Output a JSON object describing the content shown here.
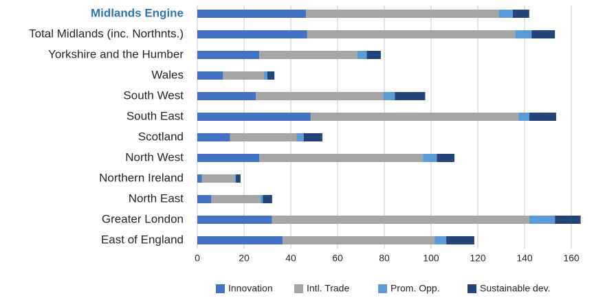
{
  "chart_data": {
    "type": "stacked_bar_horizontal",
    "categories": [
      "Midlands Engine",
      "Total Midlands (inc. Northnts.)",
      "Yorkshire and the Humber",
      "Wales",
      "South West",
      "South East",
      "Scotland",
      "North West",
      "Northern Ireland",
      "North East",
      "Greater London",
      "East of England"
    ],
    "series": [
      {
        "name": "Innovation",
        "color": "#4472c4",
        "values": [
          46.5,
          47,
          26.5,
          11,
          25,
          48.5,
          14,
          26.5,
          2,
          6,
          32,
          36.5
        ]
      },
      {
        "name": "Intl. Trade",
        "color": "#a5a5a5",
        "values": [
          82.5,
          89,
          42,
          17.5,
          54.5,
          89,
          28.5,
          70,
          14,
          21,
          110,
          65
        ]
      },
      {
        "name": "Prom. Opp.",
        "color": "#5b9bd5",
        "values": [
          6,
          7,
          4,
          1.5,
          5,
          4.5,
          3,
          6,
          0.5,
          1,
          11,
          5
        ]
      },
      {
        "name": "Sustainable dev.",
        "color": "#264478",
        "values": [
          7,
          10,
          6,
          3,
          13,
          11.5,
          8,
          7.5,
          2,
          4,
          11,
          12
        ]
      }
    ],
    "xlim": [
      0,
      165
    ],
    "xticks": [
      0,
      20,
      40,
      60,
      80,
      100,
      120,
      140,
      160
    ],
    "grid": true,
    "legend": "bottom"
  }
}
